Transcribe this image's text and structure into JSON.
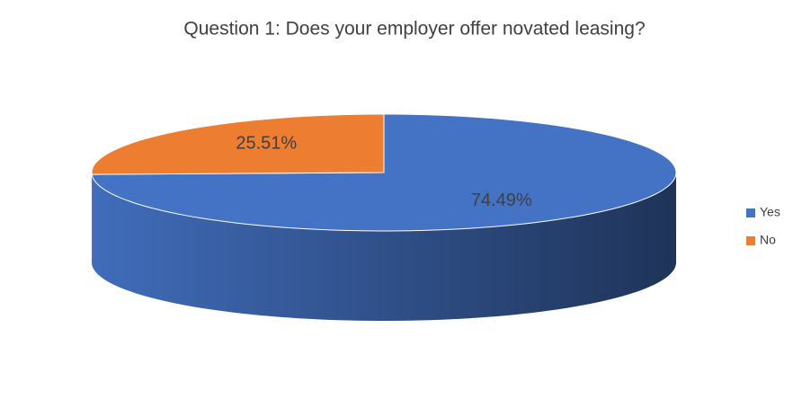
{
  "chart_data": {
    "type": "pie",
    "title": "Question 1: Does your employer offer novated leasing?",
    "categories": [
      "Yes",
      "No"
    ],
    "values": [
      74.49,
      25.51
    ],
    "value_labels": [
      "74.49%",
      "25.51%"
    ],
    "colors": [
      "#4472c4",
      "#ed7d31"
    ],
    "legend_position": "right"
  }
}
